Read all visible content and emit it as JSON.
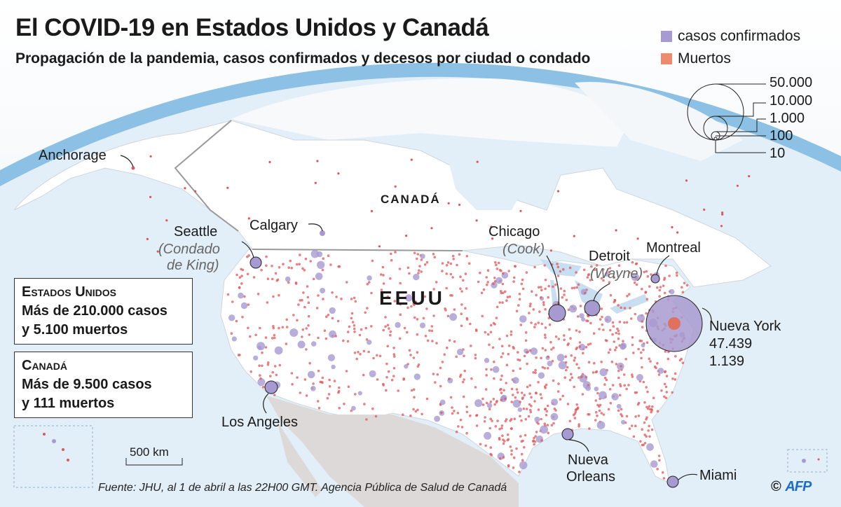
{
  "header": {
    "title": "El COVID-19 en Estados Unidos y Canadá",
    "subtitle": "Propagación de la pandemia, casos confirmados y decesos por ciudad o condado"
  },
  "legend": {
    "items": [
      {
        "label": "casos confirmados",
        "color": "#a79ad0"
      },
      {
        "label": "Muertos",
        "color": "#ec8b6e"
      }
    ],
    "sizes": [
      "50.000",
      "10.000",
      "1.000",
      "100",
      "10"
    ]
  },
  "countries": {
    "canada": "CANADÁ",
    "usa": "EEUU"
  },
  "cities": {
    "anchorage": "Anchorage",
    "seattle": "Seattle",
    "seattle_sub1": "(Condado",
    "seattle_sub2": "de King)",
    "calgary": "Calgary",
    "chicago": "Chicago",
    "chicago_sub": "(Cook)",
    "detroit": "Detroit",
    "detroit_sub": "(Wayne)",
    "montreal": "Montreal",
    "new_york": "Nueva York",
    "new_york_cases": "47.439",
    "new_york_deaths": "1.139",
    "los_angeles": "Los Angeles",
    "new_orleans_1": "Nueva",
    "new_orleans_2": "Orleans",
    "miami": "Miami"
  },
  "summary": {
    "usa": {
      "heading": "Estados Unidos",
      "line1": "Más de 210.000 casos",
      "line2": "y 5.100 muertos"
    },
    "canada": {
      "heading": "Canadá",
      "line1": "Más de 9.500 casos",
      "line2": "y 111 muertos"
    }
  },
  "scale": "500 km",
  "source": "Fuente: JHU, al 1 de abril a las 22H00 GMT. Agencia Pública de Salud de Canadá",
  "credit": {
    "copyright": "©",
    "logo": "AFP"
  },
  "colors": {
    "ocean": "#cfe3f2",
    "land": "#ffffff",
    "mexico": "#ddd9d9",
    "cases": "#a79ad0",
    "deaths": "#d9595e"
  }
}
